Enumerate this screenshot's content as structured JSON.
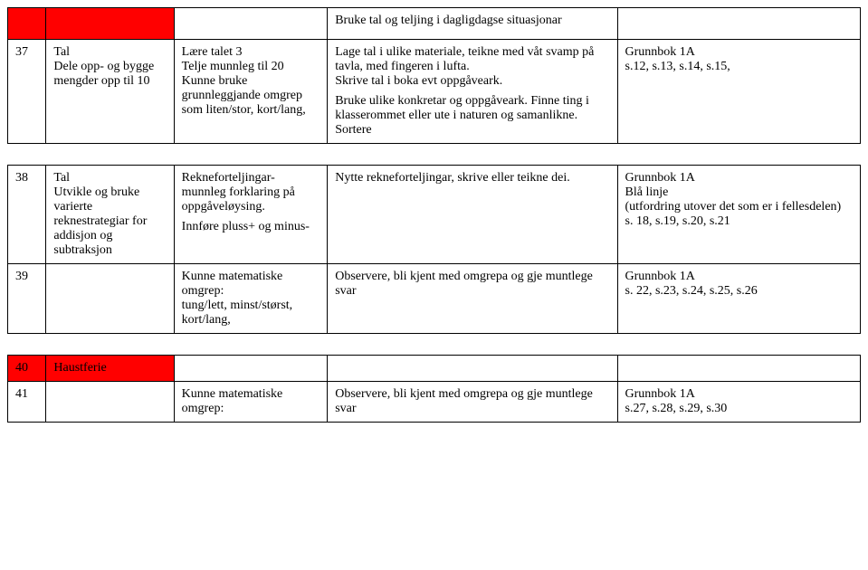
{
  "rows": {
    "r0": {
      "c3": "Bruke tal og teljing i dagligdagse situasjonar"
    },
    "r1": {
      "c0": "37",
      "c1a": "Tal",
      "c1b": "Dele opp- og bygge mengder opp til 10",
      "c2a": "Lære talet 3",
      "c2b": "Telje munnleg til 20",
      "c2c": "Kunne bruke grunnleggjande omgrep som liten/stor, kort/lang,",
      "c3a": "Lage tal i ulike materiale, teikne med våt svamp på tavla, med fingeren i lufta.",
      "c3b": "Skrive tal i boka evt oppgåveark.",
      "c3c": "Bruke ulike konkretar og oppgåveark. Finne ting i klasserommet eller ute i naturen og samanlikne. Sortere",
      "c4a": "Grunnbok 1A",
      "c4b": "s.12, s.13, s.14, s.15,"
    },
    "r2": {
      "c0": "38",
      "c1a": "Tal",
      "c1b": "Utvikle og bruke varierte reknestrategiar for addisjon og subtraksjon",
      "c2a": "Rekneforteljingar- munnleg forklaring på oppgåveløysing.",
      "c2b": "Innføre pluss+ og minus-",
      "c3": "Nytte rekneforteljingar, skrive eller teikne dei.",
      "c4a": "Grunnbok 1A",
      "c4b": "Blå linje",
      "c4c": "(utfordring utover det som er i fellesdelen)",
      "c4d": "s. 18, s.19, s.20, s.21"
    },
    "r3": {
      "c0": "39",
      "c2a": "Kunne matematiske omgrep:",
      "c2b": "tung/lett, minst/størst, kort/lang,",
      "c3": "Observere, bli kjent med omgrepa og gje muntlege svar",
      "c4a": "Grunnbok 1A",
      "c4b": "s. 22, s.23, s.24, s.25, s.26"
    },
    "r4": {
      "c0": "40",
      "c1": "Haustferie"
    },
    "r5": {
      "c0": "41",
      "c2": "Kunne matematiske omgrep:",
      "c3": "Observere, bli kjent med omgrepa og gje muntlege svar",
      "c4a": "Grunnbok 1A",
      "c4b": "s.27, s.28, s.29, s.30"
    }
  }
}
